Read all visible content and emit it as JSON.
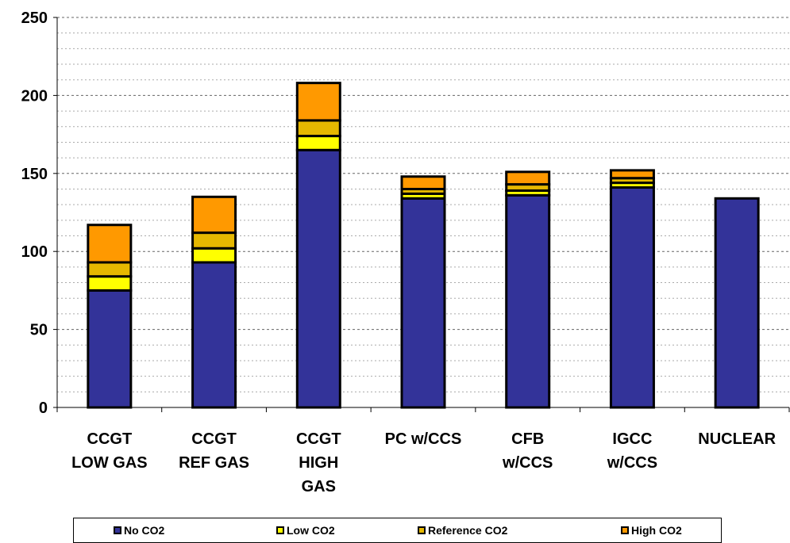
{
  "chart_data": {
    "type": "bar",
    "stacked": true,
    "title": "",
    "xlabel": "",
    "ylabel": "",
    "ylim": [
      0,
      250
    ],
    "yticks": [
      0,
      50,
      100,
      150,
      200,
      250
    ],
    "minor_grid_step": 10,
    "grid": true,
    "legend_position": "bottom",
    "categories": [
      [
        "CCGT",
        "LOW GAS"
      ],
      [
        "CCGT",
        "REF GAS"
      ],
      [
        "CCGT",
        "HIGH",
        "GAS"
      ],
      [
        "PC w/CCS"
      ],
      [
        "CFB",
        "w/CCS"
      ],
      [
        "IGCC",
        "w/CCS"
      ],
      [
        "NUCLEAR"
      ]
    ],
    "series": [
      {
        "name": "No CO2",
        "color": "#333399",
        "values": [
          75,
          93,
          165,
          134,
          136,
          141,
          134
        ]
      },
      {
        "name": "Low CO2",
        "color": "#FFFF00",
        "values": [
          9,
          9,
          9,
          3,
          3,
          3,
          0
        ]
      },
      {
        "name": "Reference CO2",
        "color": "#E6B800",
        "values": [
          9,
          10,
          10,
          3,
          4,
          3,
          0
        ]
      },
      {
        "name": "High CO2",
        "color": "#FF9900",
        "values": [
          24,
          23,
          24,
          8,
          8,
          5,
          0
        ]
      }
    ]
  }
}
